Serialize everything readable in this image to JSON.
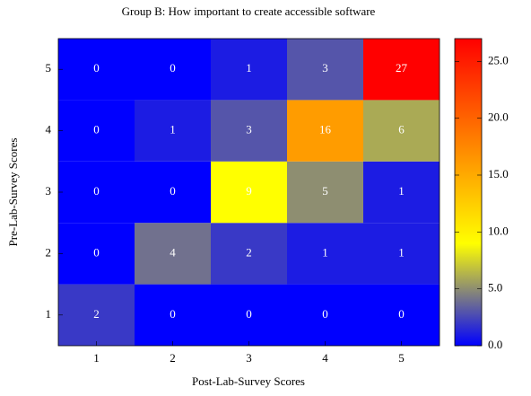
{
  "chart_data": {
    "type": "heatmap",
    "title": "Group B: How important to create accessible software",
    "x_label": "Post-Lab-Survey Scores",
    "y_label": "Pre-Lab-Survey Scores",
    "x": [
      1,
      2,
      3,
      4,
      5
    ],
    "y": [
      1,
      2,
      3,
      4,
      5
    ],
    "values": [
      [
        2,
        0,
        0,
        0,
        0
      ],
      [
        0,
        4,
        2,
        1,
        1
      ],
      [
        0,
        0,
        9,
        5,
        1
      ],
      [
        0,
        1,
        3,
        16,
        6
      ],
      [
        0,
        0,
        1,
        3,
        27
      ]
    ],
    "colormap": [
      "#0000ff",
      "#ffff00",
      "#ff8000",
      "#ff0000"
    ],
    "clim": [
      0,
      27
    ],
    "cticks": [
      {
        "value": 0,
        "label": "0.0"
      },
      {
        "value": 5,
        "label": "5.0"
      },
      {
        "value": 10,
        "label": "10.0"
      },
      {
        "value": 15,
        "label": "15.0"
      },
      {
        "value": 20,
        "label": "20.0"
      },
      {
        "value": 25,
        "label": "25.0"
      }
    ]
  }
}
